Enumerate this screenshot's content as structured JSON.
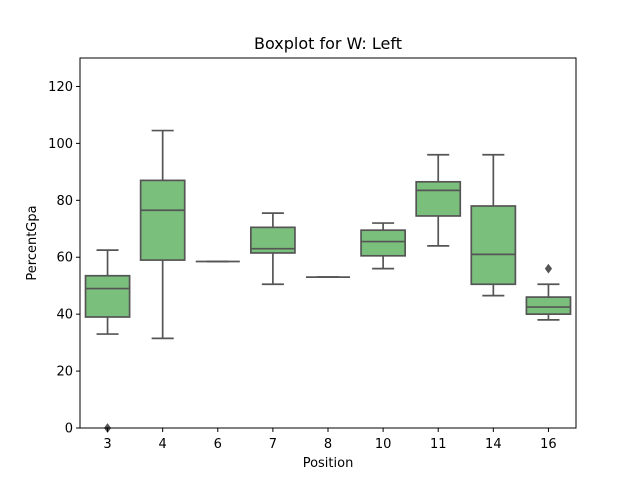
{
  "chart_data": {
    "type": "boxplot",
    "title": "Boxplot for W: Left",
    "xlabel": "Position",
    "ylabel": "PercentGpa",
    "ylim": [
      0,
      130
    ],
    "yticks": [
      0,
      20,
      40,
      60,
      80,
      100,
      120
    ],
    "grid": false,
    "box_color": "#7bbf7d",
    "line_color": "#555555",
    "categories": [
      "3",
      "4",
      "6",
      "7",
      "8",
      "10",
      "11",
      "14",
      "16"
    ],
    "boxes": [
      {
        "category": "3",
        "whislo": 33,
        "q1": 39,
        "med": 49,
        "q3": 53.5,
        "whishi": 62.5,
        "fliers": [
          0
        ]
      },
      {
        "category": "4",
        "whislo": 31.5,
        "q1": 59,
        "med": 76.5,
        "q3": 87,
        "whishi": 104.5,
        "fliers": []
      },
      {
        "category": "6",
        "whislo": 58.5,
        "q1": 58.5,
        "med": 58.5,
        "q3": 58.5,
        "whishi": 58.5,
        "fliers": []
      },
      {
        "category": "7",
        "whislo": 50.5,
        "q1": 61.5,
        "med": 63,
        "q3": 70.5,
        "whishi": 75.5,
        "fliers": []
      },
      {
        "category": "8",
        "whislo": 53,
        "q1": 53,
        "med": 53,
        "q3": 53,
        "whishi": 53,
        "fliers": []
      },
      {
        "category": "10",
        "whislo": 56,
        "q1": 60.5,
        "med": 65.5,
        "q3": 69.5,
        "whishi": 72,
        "fliers": []
      },
      {
        "category": "11",
        "whislo": 64,
        "q1": 74.5,
        "med": 83.5,
        "q3": 86.5,
        "whishi": 96,
        "fliers": []
      },
      {
        "category": "14",
        "whislo": 46.5,
        "q1": 50.5,
        "med": 61,
        "q3": 78,
        "whishi": 96,
        "fliers": []
      },
      {
        "category": "16",
        "whislo": 38,
        "q1": 40,
        "med": 42.5,
        "q3": 46,
        "whishi": 50.5,
        "fliers": [
          56
        ]
      }
    ]
  }
}
